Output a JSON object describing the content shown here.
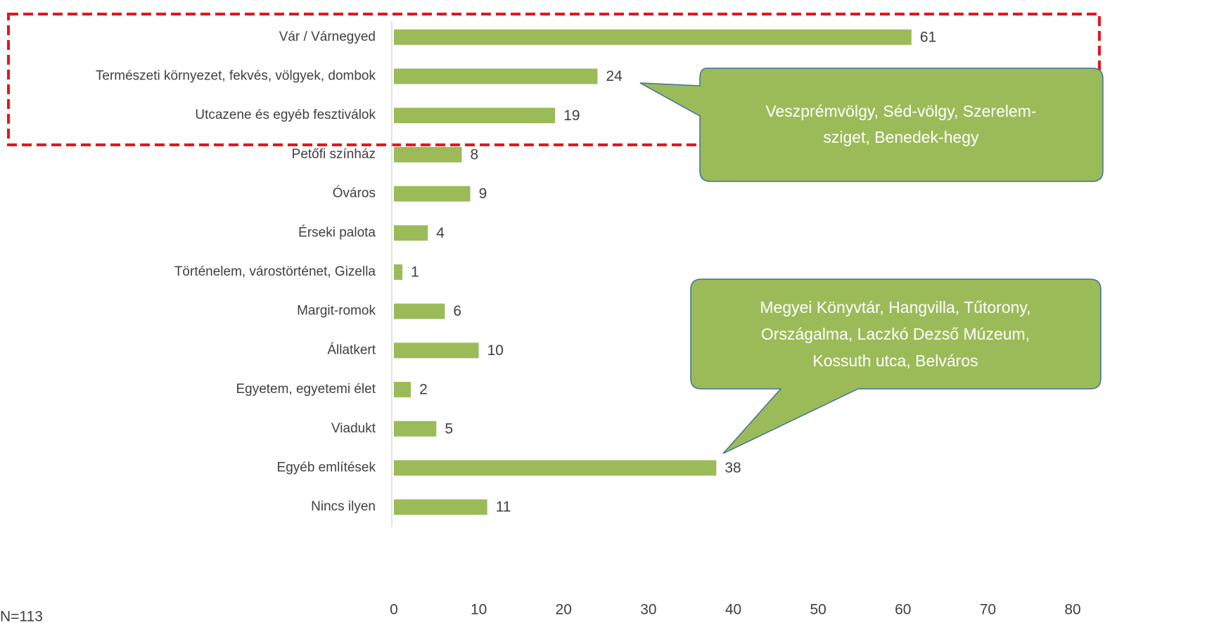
{
  "chart_data": {
    "type": "bar",
    "orientation": "horizontal",
    "categories": [
      "Vár / Várnegyed",
      "Természeti környezet, fekvés, völgyek, dombok",
      "Utcazene és egyéb fesztiválok",
      "Petőfi színház",
      "Óváros",
      "Érseki palota",
      "Történelem, várostörténet, Gizella",
      "Margit-romok",
      "Állatkert",
      "Egyetem, egyetemi élet",
      "Viadukt",
      "Egyéb említések",
      "Nincs ilyen"
    ],
    "values": [
      61,
      24,
      19,
      8,
      9,
      4,
      1,
      6,
      10,
      2,
      5,
      38,
      11
    ],
    "color": "#9bbb59",
    "xlim": [
      0,
      80
    ],
    "xticks": [
      0,
      10,
      20,
      30,
      40,
      50,
      60,
      70,
      80
    ],
    "grid": false,
    "annotations": [
      {
        "lines": [
          "Veszprémvölgy, Séd-völgy, Szerelem-",
          "sziget, Benedek-hegy"
        ]
      },
      {
        "lines": [
          "Megyei Könyvtár, Hangvilla, Tűtorony,",
          "Országalma, Laczkó Dezső Múzeum,",
          "Kossuth utca, Belváros"
        ]
      }
    ],
    "note": "N=113"
  }
}
